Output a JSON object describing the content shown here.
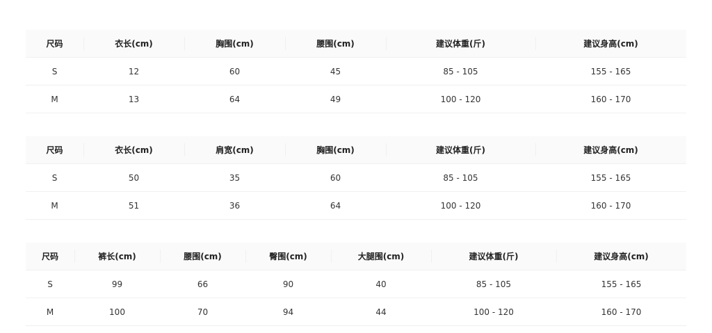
{
  "tables": [
    {
      "headers": [
        "尺码",
        "衣长(cm)",
        "胸围(cm)",
        "腰围(cm)",
        "建议体重(斤)",
        "建议身高(cm)"
      ],
      "rows": [
        [
          "S",
          "12",
          "60",
          "45",
          "85 - 105",
          "155 - 165"
        ],
        [
          "M",
          "13",
          "64",
          "49",
          "100 - 120",
          "160 - 170"
        ]
      ]
    },
    {
      "headers": [
        "尺码",
        "衣长(cm)",
        "肩宽(cm)",
        "胸围(cm)",
        "建议体重(斤)",
        "建议身高(cm)"
      ],
      "rows": [
        [
          "S",
          "50",
          "35",
          "60",
          "85 - 105",
          "155 - 165"
        ],
        [
          "M",
          "51",
          "36",
          "64",
          "100 - 120",
          "160 - 170"
        ]
      ]
    },
    {
      "headers": [
        "尺码",
        "裤长(cm)",
        "腰围(cm)",
        "臀围(cm)",
        "大腿围(cm)",
        "建议体重(斤)",
        "建议身高(cm)"
      ],
      "rows": [
        [
          "S",
          "99",
          "66",
          "90",
          "40",
          "85 - 105",
          "155 - 165"
        ],
        [
          "M",
          "100",
          "70",
          "94",
          "44",
          "100 - 120",
          "160 - 170"
        ]
      ]
    }
  ]
}
